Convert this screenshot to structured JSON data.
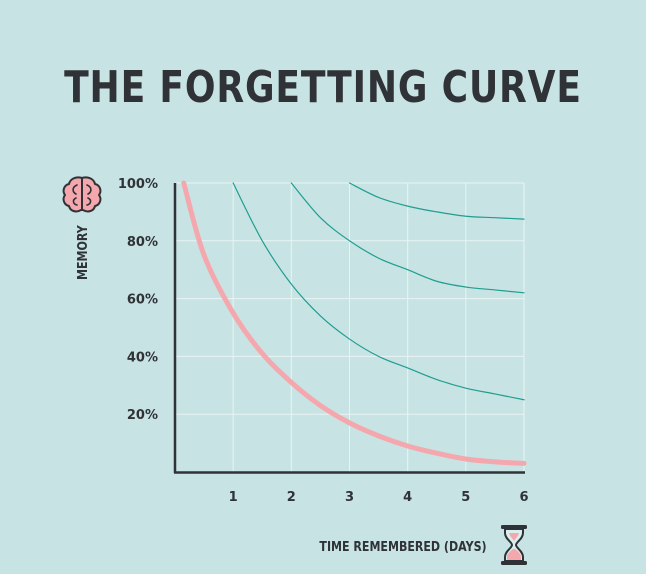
{
  "chart_data": {
    "type": "line",
    "title": "THE FORGETTING CURVE",
    "xlabel": "TIME REMEMBERED (DAYS)",
    "ylabel": "MEMORY",
    "x_ticks": [
      "1",
      "2",
      "3",
      "4",
      "5",
      "6"
    ],
    "y_ticks": [
      "20%",
      "40%",
      "60%",
      "80%",
      "100%"
    ],
    "xlim": [
      0,
      6
    ],
    "ylim": [
      0,
      100
    ],
    "grid": true,
    "colors": {
      "background": "#c8e3e4",
      "primary_curve": "#f4a8ae",
      "review_curves": "#1f9e8f",
      "grid": "#e8f4f4",
      "axis": "#2f3236",
      "brain_icon": "#f4a8ae",
      "hourglass_sand": "#f4a8ae"
    },
    "series": [
      {
        "x": [
          0.15,
          0.5,
          1.0,
          1.5,
          2.0,
          2.5,
          3.0,
          3.5,
          4.0,
          4.5,
          5.0,
          5.5,
          6.0
        ],
        "values": [
          100,
          75,
          55,
          41,
          31,
          23,
          17,
          12.5,
          9,
          6.5,
          4.5,
          3.5,
          3
        ]
      },
      {
        "x": [
          1.0,
          1.5,
          2.0,
          2.5,
          3.0,
          3.5,
          4.0,
          4.5,
          5.0,
          5.5,
          6.0
        ],
        "values": [
          100,
          80,
          65,
          54,
          46,
          40,
          36,
          32,
          29,
          27,
          25
        ]
      },
      {
        "x": [
          2.0,
          2.5,
          3.0,
          3.5,
          4.0,
          4.5,
          5.0,
          5.5,
          6.0
        ],
        "values": [
          100,
          88,
          80,
          74,
          70,
          66,
          64,
          63,
          62
        ]
      },
      {
        "x": [
          3.0,
          3.5,
          4.0,
          4.5,
          5.0,
          5.5,
          6.0
        ],
        "values": [
          100,
          95,
          92,
          90,
          88.5,
          88,
          87.5
        ]
      }
    ]
  }
}
